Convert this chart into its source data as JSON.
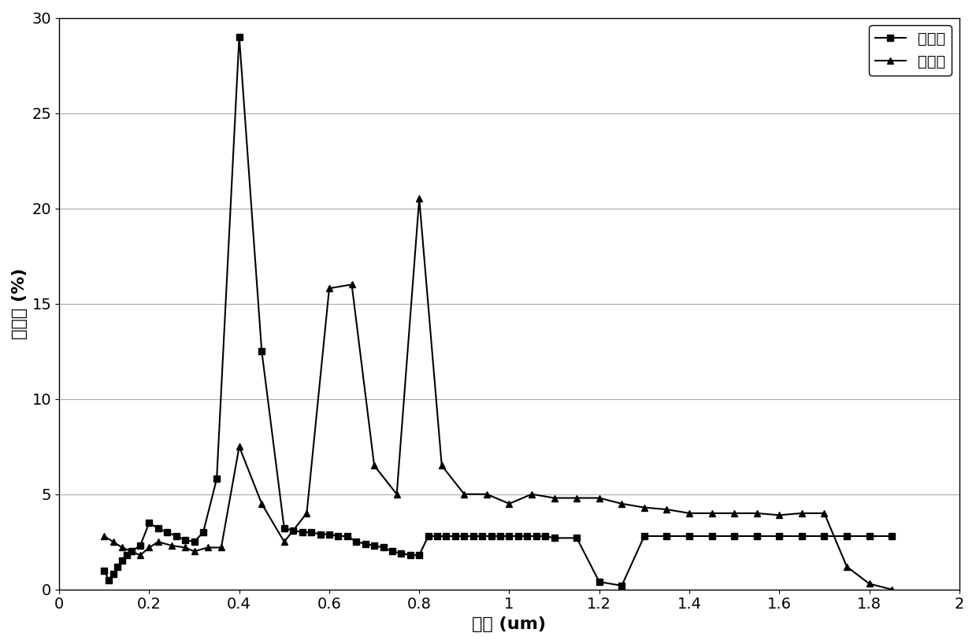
{
  "series1_label": "实施例",
  "series2_label": "对照组",
  "series1_x": [
    0.1,
    0.11,
    0.12,
    0.13,
    0.14,
    0.15,
    0.16,
    0.18,
    0.2,
    0.22,
    0.24,
    0.26,
    0.28,
    0.3,
    0.32,
    0.35,
    0.4,
    0.45,
    0.5,
    0.52,
    0.54,
    0.56,
    0.58,
    0.6,
    0.62,
    0.64,
    0.66,
    0.68,
    0.7,
    0.72,
    0.74,
    0.76,
    0.78,
    0.8,
    0.82,
    0.84,
    0.86,
    0.88,
    0.9,
    0.92,
    0.94,
    0.96,
    0.98,
    1.0,
    1.02,
    1.04,
    1.06,
    1.08,
    1.1,
    1.15,
    1.2,
    1.25,
    1.3,
    1.35,
    1.4,
    1.45,
    1.5,
    1.55,
    1.6,
    1.65,
    1.7,
    1.75,
    1.8,
    1.85
  ],
  "series1_y": [
    1.0,
    0.5,
    0.8,
    1.2,
    1.5,
    1.8,
    2.0,
    2.3,
    3.5,
    3.2,
    3.0,
    2.8,
    2.6,
    2.5,
    3.0,
    5.8,
    29.0,
    12.5,
    3.2,
    3.1,
    3.0,
    3.0,
    2.9,
    2.9,
    2.8,
    2.8,
    2.5,
    2.4,
    2.3,
    2.2,
    2.0,
    1.9,
    1.8,
    1.8,
    2.8,
    2.8,
    2.8,
    2.8,
    2.8,
    2.8,
    2.8,
    2.8,
    2.8,
    2.8,
    2.8,
    2.8,
    2.8,
    2.8,
    2.7,
    2.7,
    0.4,
    0.2,
    2.8,
    2.8,
    2.8,
    2.8,
    2.8,
    2.8,
    2.8,
    2.8,
    2.8,
    2.8,
    2.8,
    2.8
  ],
  "series2_x": [
    0.1,
    0.12,
    0.14,
    0.16,
    0.18,
    0.2,
    0.22,
    0.25,
    0.28,
    0.3,
    0.33,
    0.36,
    0.4,
    0.45,
    0.5,
    0.55,
    0.6,
    0.65,
    0.7,
    0.75,
    0.8,
    0.85,
    0.9,
    0.95,
    1.0,
    1.05,
    1.1,
    1.15,
    1.2,
    1.25,
    1.3,
    1.35,
    1.4,
    1.45,
    1.5,
    1.55,
    1.6,
    1.65,
    1.7,
    1.75,
    1.8,
    1.85
  ],
  "series2_y": [
    2.8,
    2.5,
    2.2,
    2.0,
    1.8,
    2.2,
    2.5,
    2.3,
    2.2,
    2.0,
    2.2,
    2.2,
    7.5,
    4.5,
    2.5,
    4.0,
    15.8,
    16.0,
    6.5,
    5.0,
    20.5,
    6.5,
    5.0,
    5.0,
    4.5,
    5.0,
    4.8,
    4.8,
    4.8,
    4.5,
    4.3,
    4.2,
    4.0,
    4.0,
    4.0,
    4.0,
    3.9,
    4.0,
    4.0,
    1.2,
    0.3,
    0.0
  ],
  "xlabel": "孔径 (um)",
  "ylabel": "百分比 (%)",
  "xlim": [
    0,
    2
  ],
  "ylim": [
    0,
    30
  ],
  "yticks": [
    0,
    5,
    10,
    15,
    20,
    25,
    30
  ],
  "xticks": [
    0,
    0.2,
    0.4,
    0.6,
    0.8,
    1.0,
    1.2,
    1.4,
    1.6,
    1.8,
    2.0
  ],
  "color": "#000000",
  "bg_color": "#ffffff",
  "linewidth": 1.5,
  "markersize": 6,
  "legend_loc": "upper right",
  "grid_color": "#aaaaaa"
}
